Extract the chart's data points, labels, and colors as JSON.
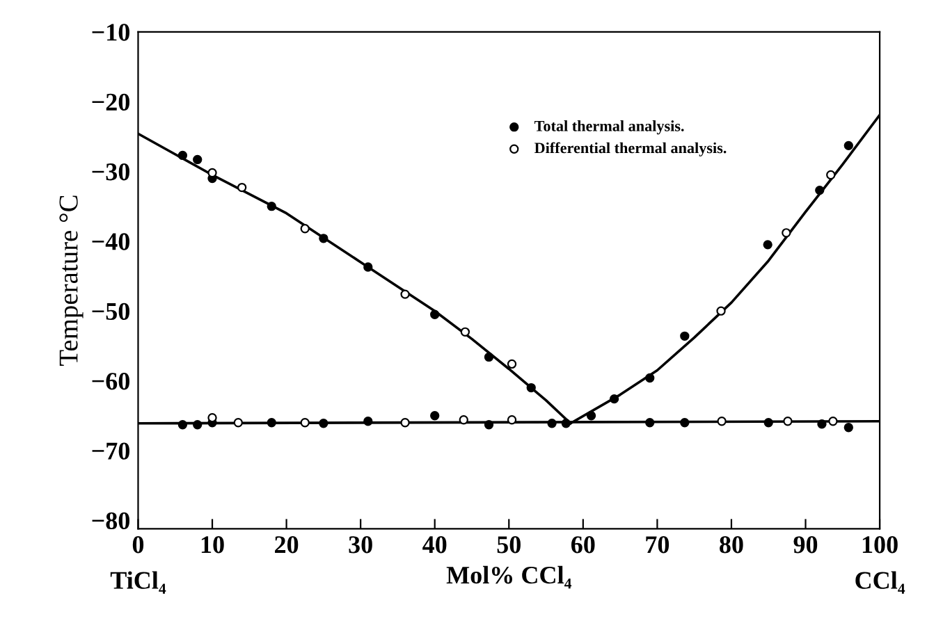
{
  "chart_data": {
    "type": "scatter",
    "xlabel": "Mol% CCl₄",
    "ylabel": "Temperature °C",
    "annotations": [
      "TiCl₄",
      "CCl₄"
    ],
    "xlim": [
      0,
      100
    ],
    "ylim": [
      -81.2,
      -10
    ],
    "xticks": [
      0,
      10,
      20,
      30,
      40,
      50,
      60,
      70,
      80,
      90,
      100
    ],
    "yticks": [
      -10,
      -20,
      -30,
      -40,
      -50,
      -60,
      -70,
      -80
    ],
    "grid": false,
    "legend": "top",
    "series": [
      {
        "name": "Total thermal analysis.",
        "marker": "circle",
        "color": "#000000",
        "x": [
          6,
          8,
          10,
          18,
          25,
          31,
          40,
          47.3,
          53,
          61.1,
          64.2,
          69,
          73.7,
          84.9,
          91.9,
          95.8,
          6,
          8,
          10,
          18,
          25,
          31,
          40,
          47.3,
          55.8,
          57.7,
          69,
          73.7,
          85,
          92.2,
          95.8
        ],
        "values": [
          -27.7,
          -28.3,
          -31,
          -35,
          -39.6,
          -43.7,
          -50.5,
          -56.6,
          -61,
          -65,
          -62.6,
          -59.6,
          -53.6,
          -40.5,
          -32.7,
          -26.3,
          -66.3,
          -66.3,
          -66,
          -66,
          -66.1,
          -65.8,
          -65,
          -66.3,
          -66.1,
          -66.1,
          -66,
          -66,
          -66,
          -66.2,
          -66.7
        ]
      },
      {
        "name": "Differential thermal analysis.",
        "marker": "circle",
        "color": "#ffffff",
        "x": [
          10,
          14,
          22.5,
          36,
          44.1,
          50.4,
          78.6,
          87.4,
          93.4,
          10,
          13.5,
          22.5,
          36,
          43.9,
          50.4,
          78.7,
          87.6,
          93.7
        ],
        "values": [
          -30.2,
          -32.3,
          -38.2,
          -47.6,
          -53,
          -57.6,
          -50,
          -38.8,
          -30.5,
          -65.3,
          -66,
          -66,
          -66,
          -65.6,
          -65.6,
          -65.8,
          -65.8,
          -65.8
        ]
      },
      {
        "type": "line",
        "color": "#000000",
        "line_style": "solid",
        "x": [
          0,
          10,
          20,
          30,
          40,
          45,
          50,
          55,
          58.3
        ],
        "values": [
          -24.6,
          -30.5,
          -36,
          -43,
          -50,
          -54,
          -58.3,
          -62.8,
          -66.1
        ]
      },
      {
        "type": "line",
        "color": "#000000",
        "line_style": "solid",
        "x": [
          58.3,
          65,
          70,
          75,
          80,
          85,
          90,
          95,
          100
        ],
        "values": [
          -66.1,
          -62,
          -58.5,
          -53.8,
          -48.8,
          -42.8,
          -35.8,
          -29,
          -21.9
        ]
      },
      {
        "type": "line",
        "color": "#000000",
        "line_style": "solid",
        "x": [
          0,
          100
        ],
        "values": [
          -66.1,
          -65.8
        ]
      }
    ]
  }
}
